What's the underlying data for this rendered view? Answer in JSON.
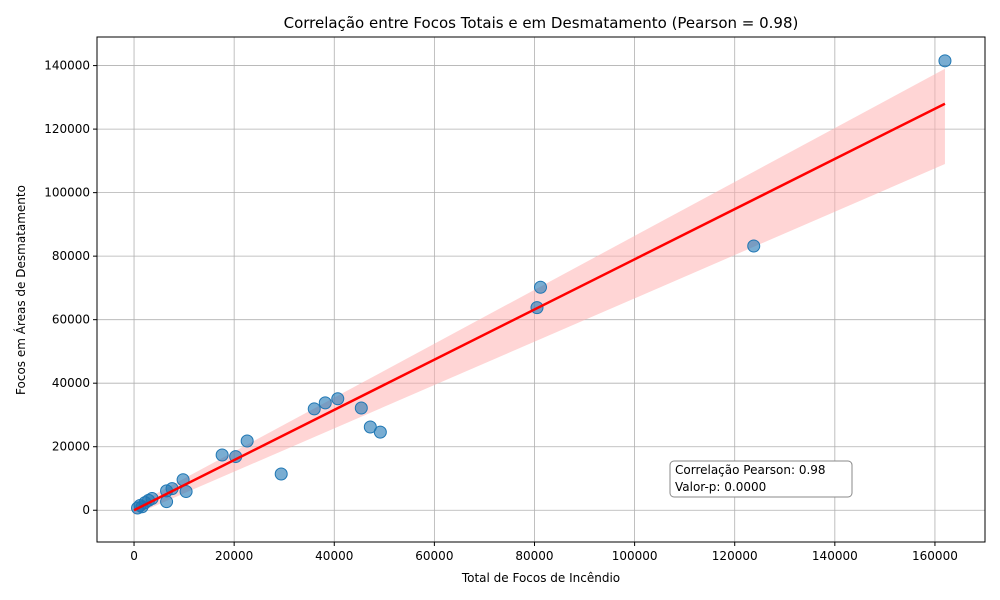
{
  "chart_data": {
    "type": "scatter",
    "title": "Correlação entre Focos Totais e em Desmatamento (Pearson = 0.98)",
    "xlabel": "Total de Focos de Incêndio",
    "ylabel": "Focos em Áreas de Desmatamento",
    "xlim": [
      -7400,
      170000
    ],
    "ylim": [
      -10000,
      149000
    ],
    "xticks": [
      0,
      20000,
      40000,
      60000,
      80000,
      100000,
      120000,
      140000,
      160000
    ],
    "yticks": [
      0,
      20000,
      40000,
      60000,
      80000,
      100000,
      120000,
      140000
    ],
    "xtick_labels": [
      "0",
      "20000",
      "40000",
      "60000",
      "80000",
      "100000",
      "120000",
      "140000",
      "160000"
    ],
    "ytick_labels": [
      "0",
      "20000",
      "40000",
      "60000",
      "80000",
      "100000",
      "120000",
      "140000"
    ],
    "grid": true,
    "points": [
      {
        "x": 162000,
        "y": 141500
      },
      {
        "x": 123800,
        "y": 83200
      },
      {
        "x": 81200,
        "y": 70200
      },
      {
        "x": 80500,
        "y": 63800
      },
      {
        "x": 40700,
        "y": 35100
      },
      {
        "x": 38200,
        "y": 33800
      },
      {
        "x": 36000,
        "y": 31900
      },
      {
        "x": 45400,
        "y": 32200
      },
      {
        "x": 47200,
        "y": 26200
      },
      {
        "x": 49200,
        "y": 24600
      },
      {
        "x": 22600,
        "y": 21800
      },
      {
        "x": 17600,
        "y": 17400
      },
      {
        "x": 20300,
        "y": 16900
      },
      {
        "x": 29400,
        "y": 11400
      },
      {
        "x": 9800,
        "y": 9600
      },
      {
        "x": 7600,
        "y": 6800
      },
      {
        "x": 6500,
        "y": 6100
      },
      {
        "x": 10400,
        "y": 5900
      },
      {
        "x": 3600,
        "y": 3700
      },
      {
        "x": 2900,
        "y": 3100
      },
      {
        "x": 2200,
        "y": 2400
      },
      {
        "x": 6500,
        "y": 2700
      },
      {
        "x": 1200,
        "y": 1500
      },
      {
        "x": 700,
        "y": 700
      },
      {
        "x": 1600,
        "y": 1100
      }
    ],
    "regression": {
      "x": [
        0,
        162000
      ],
      "y": [
        0,
        128000
      ]
    },
    "confidence_band": {
      "x": [
        0,
        162000
      ],
      "upper": [
        1500,
        139000
      ],
      "lower": [
        -1500,
        109000
      ]
    },
    "colors": {
      "points": "#1f77b4",
      "regression": "#ff0000",
      "band": "#ffb3b3",
      "grid": "#b0b0b0"
    },
    "annotation": {
      "line1": "Correlação Pearson: 0.98",
      "line2": "Valor-p: 0.0000",
      "placement": "lower-right"
    }
  }
}
